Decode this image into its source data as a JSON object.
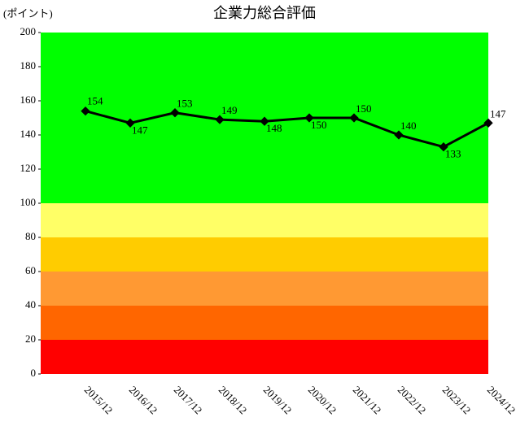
{
  "chart_data": {
    "type": "line",
    "title": "企業力総合評価",
    "y_label": "(ポイント)",
    "categories": [
      "2015/12",
      "2016/12",
      "2017/12",
      "2018/12",
      "2019/12",
      "2020/12",
      "2021/12",
      "2022/12",
      "2023/12",
      "2024/12"
    ],
    "series": [
      {
        "name": "企業力総合評価",
        "color": "#000000",
        "values": [
          154,
          147,
          153,
          149,
          148,
          150,
          150,
          140,
          133,
          147
        ]
      }
    ],
    "ylim": [
      0,
      200
    ],
    "yticks": [
      0,
      20,
      40,
      60,
      80,
      100,
      120,
      140,
      160,
      180,
      200
    ],
    "bands": [
      {
        "range": [
          0,
          20
        ],
        "color": "#ff0000"
      },
      {
        "range": [
          20,
          40
        ],
        "color": "#ff6600"
      },
      {
        "range": [
          40,
          60
        ],
        "color": "#ff9933"
      },
      {
        "range": [
          60,
          80
        ],
        "color": "#ffcc00"
      },
      {
        "range": [
          80,
          100
        ],
        "color": "#ffff66"
      },
      {
        "range": [
          100,
          200
        ],
        "color": "#00ff00"
      }
    ]
  }
}
